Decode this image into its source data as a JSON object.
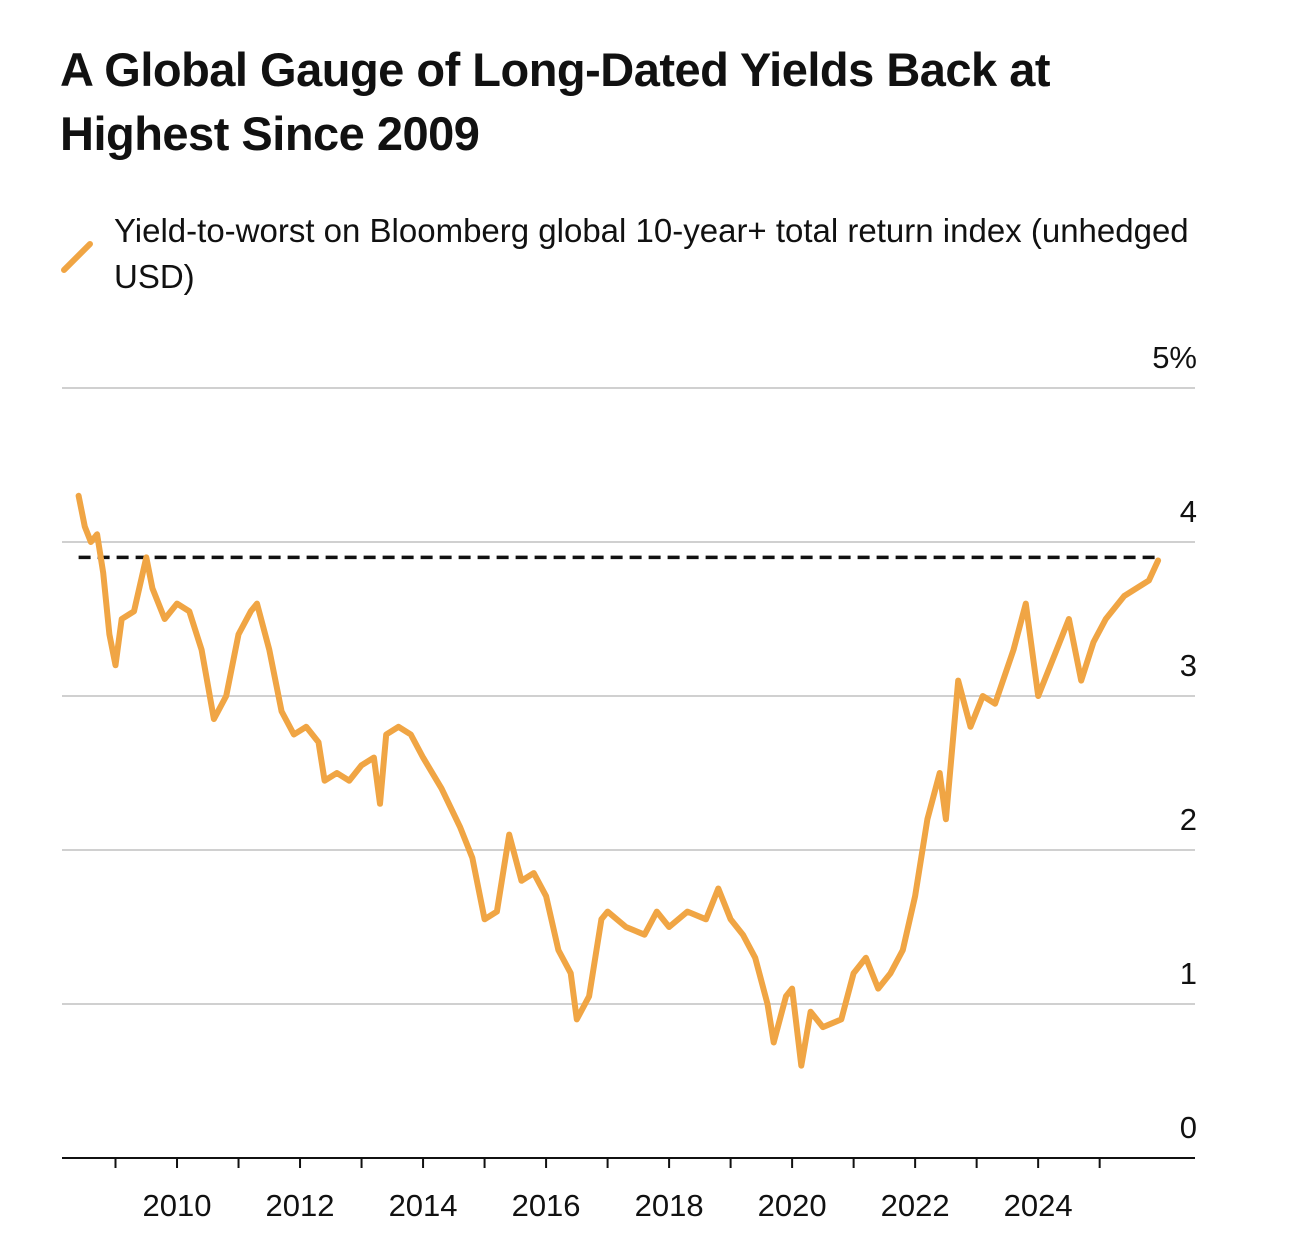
{
  "chart_data": {
    "type": "line",
    "title": "A Global Gauge of Long-Dated Yields Back at Highest Since 2009",
    "series": [
      {
        "name": "Yield-to-worst on Bloomberg global 10-year+ total return index (unhedged USD)",
        "color": "#f0a544",
        "x": [
          2008.4,
          2008.5,
          2008.6,
          2008.7,
          2008.8,
          2008.9,
          2009.0,
          2009.1,
          2009.3,
          2009.5,
          2009.6,
          2009.8,
          2010.0,
          2010.2,
          2010.4,
          2010.6,
          2010.8,
          2011.0,
          2011.2,
          2011.3,
          2011.5,
          2011.7,
          2011.9,
          2012.1,
          2012.3,
          2012.4,
          2012.6,
          2012.8,
          2013.0,
          2013.2,
          2013.3,
          2013.4,
          2013.6,
          2013.8,
          2014.0,
          2014.3,
          2014.6,
          2014.8,
          2015.0,
          2015.2,
          2015.4,
          2015.6,
          2015.8,
          2016.0,
          2016.2,
          2016.4,
          2016.5,
          2016.7,
          2016.9,
          2017.0,
          2017.3,
          2017.6,
          2017.8,
          2018.0,
          2018.3,
          2018.6,
          2018.8,
          2019.0,
          2019.2,
          2019.4,
          2019.6,
          2019.7,
          2019.9,
          2020.0,
          2020.15,
          2020.3,
          2020.5,
          2020.8,
          2021.0,
          2021.2,
          2021.4,
          2021.6,
          2021.8,
          2022.0,
          2022.2,
          2022.4,
          2022.5,
          2022.7,
          2022.9,
          2023.1,
          2023.3,
          2023.6,
          2023.8,
          2024.0,
          2024.2,
          2024.5,
          2024.7,
          2024.9,
          2025.1,
          2025.4,
          2025.6,
          2025.8,
          2025.95
        ],
        "values": [
          4.3,
          4.1,
          4.0,
          4.05,
          3.8,
          3.4,
          3.2,
          3.5,
          3.55,
          3.9,
          3.7,
          3.5,
          3.6,
          3.55,
          3.3,
          2.85,
          3.0,
          3.4,
          3.55,
          3.6,
          3.3,
          2.9,
          2.75,
          2.8,
          2.7,
          2.45,
          2.5,
          2.45,
          2.55,
          2.6,
          2.3,
          2.75,
          2.8,
          2.75,
          2.6,
          2.4,
          2.15,
          1.95,
          1.55,
          1.6,
          2.1,
          1.8,
          1.85,
          1.7,
          1.35,
          1.2,
          0.9,
          1.05,
          1.55,
          1.6,
          1.5,
          1.45,
          1.6,
          1.5,
          1.6,
          1.55,
          1.75,
          1.55,
          1.45,
          1.3,
          1.0,
          0.75,
          1.05,
          1.1,
          0.6,
          0.95,
          0.85,
          0.9,
          1.2,
          1.3,
          1.1,
          1.2,
          1.35,
          1.7,
          2.2,
          2.5,
          2.2,
          3.1,
          2.8,
          3.0,
          2.95,
          3.3,
          3.6,
          3.0,
          3.2,
          3.5,
          3.1,
          3.35,
          3.5,
          3.65,
          3.7,
          3.75,
          3.88
        ]
      }
    ],
    "ref_line": 3.9,
    "xlim": [
      2008.13,
      2026.55
    ],
    "xticks": [
      2010,
      2012,
      2014,
      2016,
      2018,
      2020,
      2022,
      2024
    ],
    "xminor_ticks": [
      2009,
      2011,
      2013,
      2015,
      2017,
      2019,
      2021,
      2023,
      2025
    ],
    "ylim": [
      0,
      5
    ],
    "yticks": [
      0,
      1,
      2,
      3,
      4,
      {
        "value": 5,
        "label": "5%"
      }
    ],
    "grid": true
  }
}
